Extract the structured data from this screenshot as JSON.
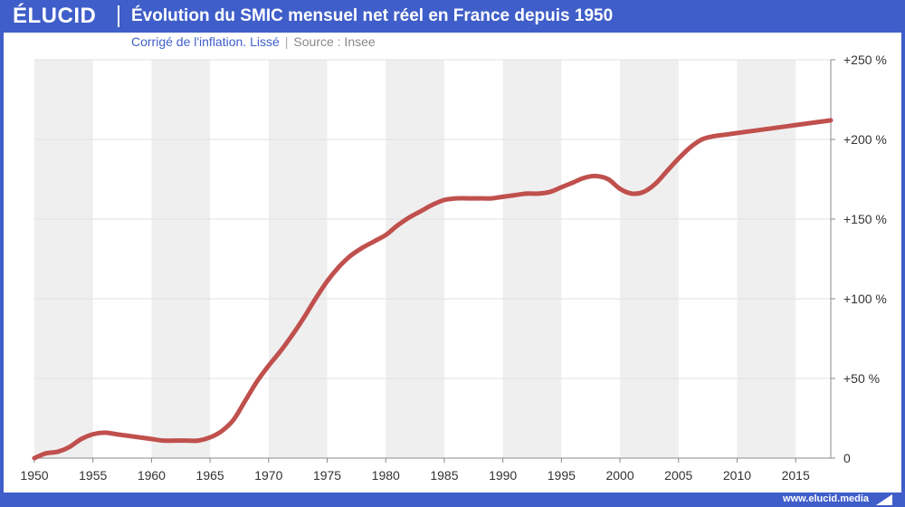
{
  "header": {
    "logo": "ÉLUCID",
    "title": "Évolution du SMIC mensuel net réel en France depuis 1950"
  },
  "subheader": {
    "subtitle": "Corrigé de l'inflation. Lissé",
    "separator": "|",
    "source": "Source : Insee"
  },
  "footer": {
    "url": "www.elucid.media"
  },
  "colors": {
    "brand": "#3f5ec9",
    "line": "#c0504d",
    "band": "#efefef"
  },
  "chart_data": {
    "type": "line",
    "title": "Évolution du SMIC mensuel net réel en France depuis 1950",
    "subtitle": "Corrigé de l'inflation. Lissé",
    "xlabel": "",
    "ylabel": "",
    "xlim": [
      1950,
      2018
    ],
    "ylim": [
      0,
      250
    ],
    "x_ticks": [
      1950,
      1955,
      1960,
      1965,
      1970,
      1975,
      1980,
      1985,
      1990,
      1995,
      2000,
      2005,
      2010,
      2015
    ],
    "x_tick_labels": [
      "1950",
      "1955",
      "1960",
      "1965",
      "1970",
      "1975",
      "1980",
      "1985",
      "1990",
      "1995",
      "2000",
      "2005",
      "2010",
      "2015"
    ],
    "y_ticks": [
      0,
      50,
      100,
      150,
      200,
      250
    ],
    "y_tick_labels": [
      "0",
      "+50 %",
      "+100 %",
      "+150 %",
      "+200 %",
      "+250 %"
    ],
    "series": [
      {
        "name": "SMIC mensuel net réel",
        "x": [
          1950,
          1951,
          1952,
          1953,
          1954,
          1955,
          1956,
          1957,
          1958,
          1959,
          1960,
          1961,
          1962,
          1963,
          1964,
          1965,
          1966,
          1967,
          1968,
          1969,
          1970,
          1971,
          1972,
          1973,
          1974,
          1975,
          1976,
          1977,
          1978,
          1979,
          1980,
          1981,
          1982,
          1983,
          1984,
          1985,
          1986,
          1987,
          1988,
          1989,
          1990,
          1991,
          1992,
          1993,
          1994,
          1995,
          1996,
          1997,
          1998,
          1999,
          2000,
          2001,
          2002,
          2003,
          2004,
          2005,
          2006,
          2007,
          2008,
          2009,
          2010,
          2011,
          2012,
          2013,
          2014,
          2015,
          2016,
          2017,
          2018
        ],
        "values": [
          0,
          3,
          4,
          7,
          12,
          15,
          16,
          15,
          14,
          13,
          12,
          11,
          11,
          11,
          11,
          13,
          17,
          24,
          36,
          48,
          58,
          67,
          77,
          88,
          100,
          111,
          120,
          127,
          132,
          136,
          140,
          146,
          151,
          155,
          159,
          162,
          163,
          163,
          163,
          163,
          164,
          165,
          166,
          166,
          167,
          170,
          173,
          176,
          177,
          175,
          169,
          166,
          167,
          172,
          180,
          188,
          195,
          200,
          202,
          203,
          204,
          205,
          206,
          207,
          208,
          209,
          210,
          211,
          212
        ],
        "color": "#c0504d"
      }
    ]
  }
}
